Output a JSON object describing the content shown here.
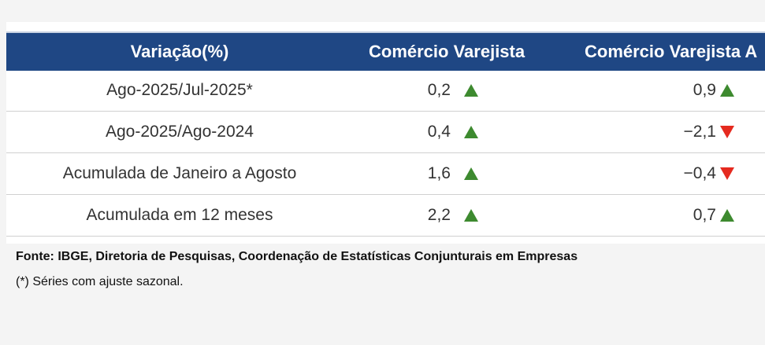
{
  "table": {
    "header": [
      "Variação(%)",
      "Comércio Varejista",
      "Comércio Varejista A"
    ],
    "rows": [
      [
        "Ago-2025/Jul-2025*",
        "0,2",
        "0,9"
      ],
      [
        "Ago-2025/Ago-2024",
        "0,4",
        "−2,1"
      ],
      [
        "Acumulada de Janeiro a Agosto",
        "1,6",
        "−0,4"
      ],
      [
        "Acumulada em 12 meses",
        "2,2",
        "0,7"
      ]
    ]
  },
  "footer": {
    "source": "Fonte: IBGE, Diretoria de Pesquisas, Coordenação de Estatísticas Conjunturais em Empresas",
    "note": "(*) Séries com ajuste sazonal."
  }
}
